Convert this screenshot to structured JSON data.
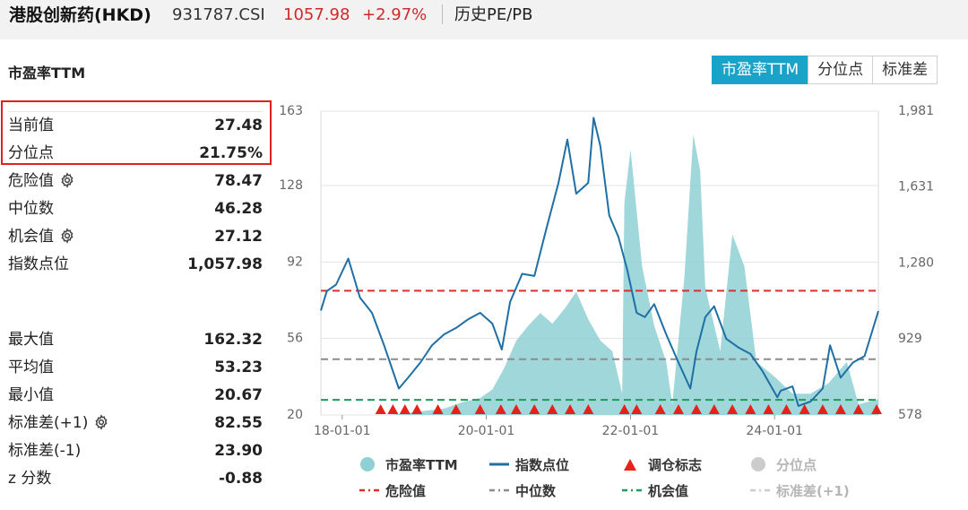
{
  "header": {
    "name": "港股创新药(HKD)",
    "code": "931787.CSI",
    "price": "1057.98",
    "change": "+2.97%",
    "link": "历史PE/PB"
  },
  "section_title": "市盈率TTM",
  "tabs": [
    {
      "label": "市盈率TTM",
      "active": true
    },
    {
      "label": "分位点",
      "active": false
    },
    {
      "label": "标准差",
      "active": false
    }
  ],
  "stats": [
    {
      "label": "当前值",
      "value": "27.48",
      "gear": false
    },
    {
      "label": "分位点",
      "value": "21.75%",
      "gear": false
    },
    {
      "label": "危险值",
      "value": "78.47",
      "gear": true
    },
    {
      "label": "中位数",
      "value": "46.28",
      "gear": false
    },
    {
      "label": "机会值",
      "value": "27.12",
      "gear": true
    },
    {
      "label": "指数点位",
      "value": "1,057.98",
      "gear": false
    }
  ],
  "stats2": [
    {
      "label": "最大值",
      "value": "162.32",
      "gear": false
    },
    {
      "label": "平均值",
      "value": "53.23",
      "gear": false
    },
    {
      "label": "最小值",
      "value": "20.67",
      "gear": false
    },
    {
      "label": "标准差(+1)",
      "value": "82.55",
      "gear": true
    },
    {
      "label": "标准差(-1)",
      "value": "23.90",
      "gear": false
    },
    {
      "label": "z 分数",
      "value": "-0.88",
      "gear": false
    }
  ],
  "colors": {
    "pe_fill": "#8fd0d4",
    "index_line": "#1f6fa5",
    "danger": "#d9302c",
    "median": "#8c8c8c",
    "opportunity": "#1f9a5a",
    "marker": "#e8201a",
    "accent": "#1aa3c9"
  },
  "chart_data": {
    "type": "area",
    "left_axis": {
      "ticks": [
        20,
        56,
        92,
        128,
        163
      ],
      "tick_labels": [
        "20",
        "56",
        "92",
        "128",
        "163"
      ],
      "range": [
        20,
        163
      ]
    },
    "right_axis": {
      "ticks": [
        578,
        929,
        1280,
        1631,
        1981
      ],
      "tick_labels": [
        "578",
        "929",
        "1,280",
        "1,631",
        "1,981"
      ],
      "range": [
        578,
        1981
      ]
    },
    "x_axis": {
      "ticks": [
        "2018-01-01",
        "2020-01-01",
        "2022-01-01",
        "2024-01-01"
      ],
      "tick_labels": [
        "18-01-01",
        "20-01-01",
        "22-01-01",
        "24-01-01"
      ],
      "range": [
        "2017-09-15",
        "2025-06-10"
      ]
    },
    "grid": true,
    "reference_lines": [
      {
        "name": "危险值",
        "value": 78.47
      },
      {
        "name": "中位数",
        "value": 46.28
      },
      {
        "name": "机会值",
        "value": 27.12
      }
    ],
    "series": [
      {
        "name": "市盈率TTM",
        "axis": "left",
        "type": "area",
        "x": [
          "2017-09-15",
          "2018-06-01",
          "2018-09-01",
          "2018-12-01",
          "2019-03-01",
          "2019-06-01",
          "2019-09-01",
          "2019-12-01",
          "2020-02-01",
          "2020-04-01",
          "2020-06-01",
          "2020-08-01",
          "2020-10-01",
          "2020-12-01",
          "2021-02-01",
          "2021-04-01",
          "2021-06-01",
          "2021-08-01",
          "2021-10-01",
          "2021-11-20",
          "2021-12-01",
          "2022-01-01",
          "2022-03-01",
          "2022-05-01",
          "2022-07-01",
          "2022-08-01",
          "2022-10-01",
          "2022-11-15",
          "2022-12-20",
          "2023-01-15",
          "2023-04-01",
          "2023-06-01",
          "2023-08-01",
          "2023-10-01",
          "2024-01-01",
          "2024-04-01",
          "2024-07-01",
          "2024-10-01",
          "2025-01-01",
          "2025-03-01",
          "2025-06-10"
        ],
        "y": [
          20,
          20,
          20,
          21,
          22,
          23,
          26,
          28,
          32,
          42,
          55,
          62,
          68,
          63,
          70,
          78,
          65,
          55,
          50,
          30,
          120,
          145,
          90,
          62,
          45,
          25,
          85,
          152,
          135,
          80,
          50,
          105,
          90,
          45,
          38,
          30,
          30,
          35,
          45,
          25,
          27.5
        ]
      },
      {
        "name": "指数点位",
        "axis": "right",
        "type": "line",
        "x": [
          "2017-09-15",
          "2017-10-15",
          "2017-12-01",
          "2018-02-01",
          "2018-04-01",
          "2018-06-01",
          "2018-08-01",
          "2018-10-15",
          "2018-12-01",
          "2019-02-01",
          "2019-04-01",
          "2019-06-01",
          "2019-08-01",
          "2019-10-01",
          "2019-12-01",
          "2020-02-01",
          "2020-03-20",
          "2020-05-01",
          "2020-07-01",
          "2020-09-01",
          "2020-11-01",
          "2021-01-01",
          "2021-02-15",
          "2021-04-01",
          "2021-06-01",
          "2021-06-28",
          "2021-08-01",
          "2021-09-15",
          "2021-11-01",
          "2021-12-15",
          "2022-02-01",
          "2022-03-15",
          "2022-05-01",
          "2022-07-01",
          "2022-09-01",
          "2022-10-31",
          "2022-12-01",
          "2023-01-15",
          "2023-03-01",
          "2023-05-01",
          "2023-07-01",
          "2023-09-01",
          "2023-11-01",
          "2024-01-15",
          "2024-02-01",
          "2024-04-01",
          "2024-05-01",
          "2024-07-01",
          "2024-09-01",
          "2024-10-08",
          "2024-12-01",
          "2025-02-01",
          "2025-04-01",
          "2025-06-10"
        ],
        "y": [
          1060,
          1150,
          1180,
          1300,
          1120,
          1050,
          900,
          700,
          750,
          820,
          900,
          950,
          980,
          1020,
          1050,
          1000,
          880,
          1100,
          1230,
          1220,
          1440,
          1650,
          1850,
          1600,
          1650,
          1950,
          1820,
          1500,
          1400,
          1250,
          1050,
          1030,
          1090,
          950,
          820,
          700,
          870,
          1030,
          1080,
          930,
          890,
          860,
          780,
          660,
          690,
          710,
          620,
          640,
          700,
          900,
          750,
          820,
          850,
          1058
        ]
      }
    ],
    "marker_dates": [
      "2018-07-15",
      "2018-09-15",
      "2018-11-15",
      "2019-01-15",
      "2019-05-01",
      "2019-08-01",
      "2019-12-01",
      "2020-03-15",
      "2020-06-01",
      "2020-09-01",
      "2020-12-01",
      "2021-03-01",
      "2021-06-01",
      "2021-12-01",
      "2022-02-01",
      "2022-06-01",
      "2022-09-01",
      "2022-12-01",
      "2023-03-01",
      "2023-06-01",
      "2023-09-01",
      "2023-12-01",
      "2024-03-01",
      "2024-06-01",
      "2024-09-01",
      "2024-12-01",
      "2025-03-01",
      "2025-06-01"
    ],
    "legend": [
      {
        "label": "市盈率TTM",
        "mark": "dot",
        "color": "#8fd0d4",
        "dim": false
      },
      {
        "label": "指数点位",
        "mark": "line",
        "color": "#1f6fa5",
        "dim": false
      },
      {
        "label": "调仓标志",
        "mark": "triangle",
        "color": "#e8201a",
        "dim": false
      },
      {
        "label": "分位点",
        "mark": "dot",
        "color": "#cccccc",
        "dim": true
      },
      {
        "label": "危险值",
        "mark": "dash",
        "color": "#d9302c",
        "dim": false
      },
      {
        "label": "中位数",
        "mark": "dash",
        "color": "#8c8c8c",
        "dim": false
      },
      {
        "label": "机会值",
        "mark": "dash",
        "color": "#1f9a5a",
        "dim": false
      },
      {
        "label": "标准差(+1)",
        "mark": "dash",
        "color": "#cccccc",
        "dim": true
      }
    ],
    "legend_position": "bottom"
  }
}
